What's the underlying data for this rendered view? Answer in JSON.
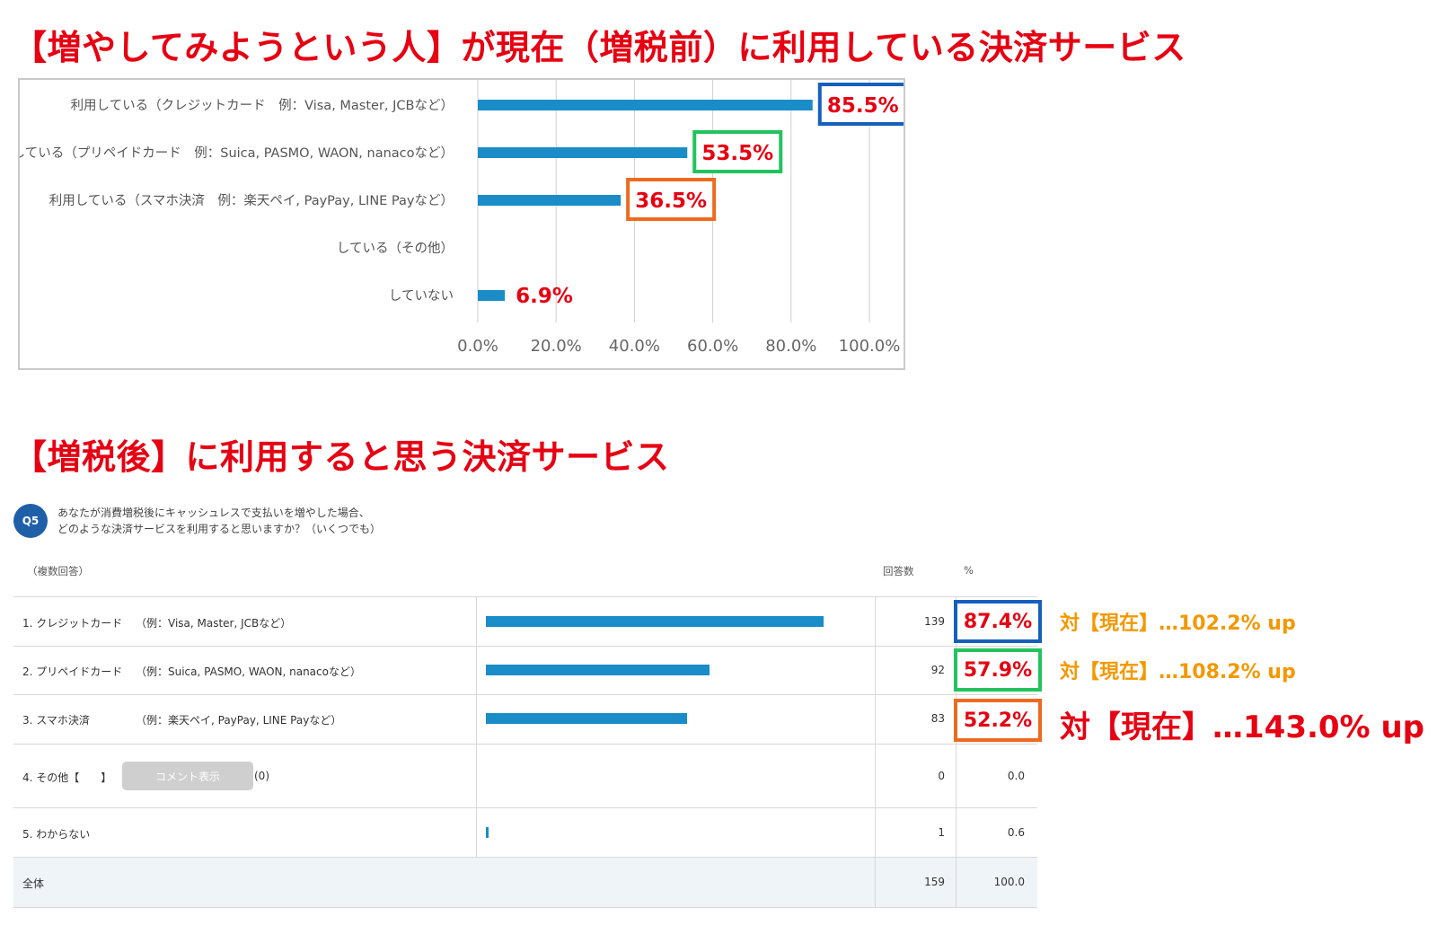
{
  "titles": {
    "top": "【増やしてみようという人】が現在（増税前）に利用している決済サービス",
    "bottom": "【増税後】に利用すると思う決済サービス"
  },
  "colors": {
    "accent_red": "#e60012",
    "bar_blue": "#1a8cc8",
    "box_blue": "#1560bd",
    "box_green": "#22c35e",
    "box_orange": "#ee6a1f",
    "cmp_orange": "#f39800"
  },
  "chart_data": [
    {
      "type": "bar",
      "orientation": "horizontal",
      "title": "【増やしてみようという人】が現在（増税前）に利用している決済サービス",
      "categories": [
        "利用している（クレジットカード　例：Visa, Master, JCBなど）",
        "利用している（プリペイドカード　例：Suica, PASMO, WAON, nanacoなど）",
        "利用している（スマホ決済　例：楽天ペイ, PayPay, LINE Payなど）",
        "している（その他）",
        "していない"
      ],
      "values": [
        85.5,
        53.5,
        36.5,
        0,
        6.9
      ],
      "value_labels": [
        "85.5%",
        "53.5%",
        "36.5%",
        "",
        "6.9%"
      ],
      "xlim": [
        0,
        100
      ],
      "xticks": [
        "0.0%",
        "20.0%",
        "40.0%",
        "60.0%",
        "80.0%",
        "100.0%"
      ],
      "grid": true
    },
    {
      "type": "table",
      "title": "【増税後】に利用すると思う決済サービス",
      "question_no": "Q5",
      "question": [
        "あなたが消費増税後にキャッシュレスで支払いを増やした場合、",
        "どのような決済サービスを利用すると思いますか？（いくつでも）"
      ],
      "note": "（複数回答）",
      "headers": {
        "count": "回答数",
        "pct": "%"
      },
      "rows": [
        {
          "label": "1. クレジットカード",
          "example": "（例：Visa, Master, JCBなど）",
          "count": "139",
          "pct": "87.4%",
          "value": 87.4
        },
        {
          "label": "2. プリペイドカード",
          "example": "（例：Suica, PASMO, WAON, nanacoなど）",
          "count": "92",
          "pct": "57.9%",
          "value": 57.9
        },
        {
          "label": "3. スマホ決済",
          "example": "（例：楽天ペイ, PayPay, LINE Payなど）",
          "count": "83",
          "pct": "52.2%",
          "value": 52.2
        },
        {
          "label": "4. その他【　　】",
          "button": "コメント表示",
          "comment_count": "(0)",
          "count": "0",
          "pct": "0.0",
          "value": 0
        },
        {
          "label": "5. わからない",
          "count": "1",
          "pct": "0.6",
          "value": 0.6
        }
      ],
      "total": {
        "label": "全体",
        "count": "159",
        "pct": "100.0"
      },
      "comparisons": [
        "対【現在】…102.2% up",
        "対【現在】…108.2% up",
        "対【現在】…143.0% up"
      ]
    }
  ]
}
